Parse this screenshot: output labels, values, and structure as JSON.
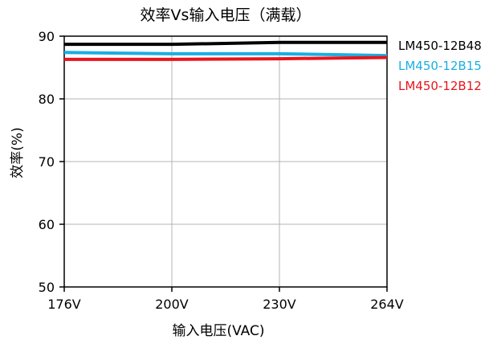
{
  "chart_data": {
    "type": "line",
    "title": "效率Vs输入电压（满载）",
    "xlabel": "输入电压(VAC)",
    "ylabel": "效率(%)",
    "categories": [
      "176V",
      "200V",
      "230V",
      "264V"
    ],
    "ylim": [
      50,
      90
    ],
    "yticks": [
      50,
      60,
      70,
      80,
      90
    ],
    "grid": true,
    "legend_position": "right",
    "series": [
      {
        "name": "LM450-12B48",
        "color": "#000000",
        "values": [
          88.7,
          88.7,
          89.0,
          89.0
        ]
      },
      {
        "name": "LM450-12B15",
        "color": "#1aaee3",
        "values": [
          87.4,
          87.2,
          87.2,
          86.9
        ]
      },
      {
        "name": "LM450-12B12",
        "color": "#e8141c",
        "values": [
          86.3,
          86.3,
          86.4,
          86.6
        ]
      }
    ]
  }
}
